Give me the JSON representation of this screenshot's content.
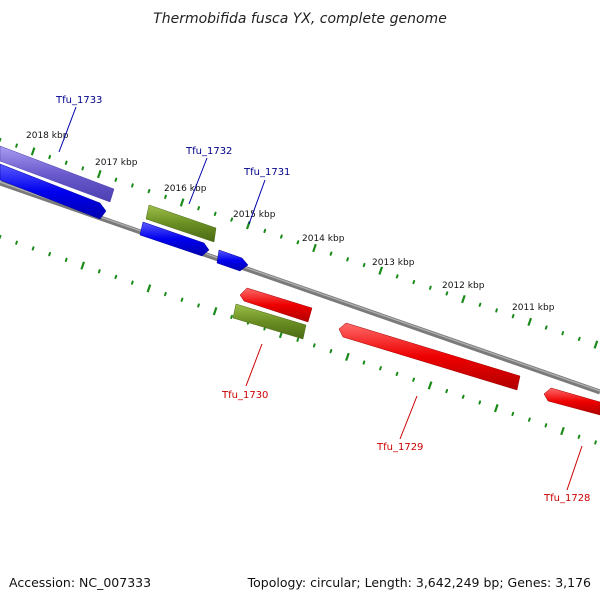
{
  "title": "Thermobifida fusca YX, complete genome",
  "footer": {
    "accession": "Accession: NC_007333",
    "stats": "Topology: circular; Length: 3,642,249 bp; Genes: 3,176"
  },
  "kbp_labels": [
    "2018 kbp",
    "2017 kbp",
    "2016 kbp",
    "2015 kbp",
    "2014 kbp",
    "2013 kbp",
    "2012 kbp",
    "2011 kbp"
  ],
  "gene_labels": {
    "forward": [
      "Tfu_1733",
      "Tfu_1732",
      "Tfu_1731"
    ],
    "reverse": [
      "Tfu_1730",
      "Tfu_1729",
      "Tfu_1728"
    ]
  },
  "colors": {
    "forward_strand": "#0000ee",
    "reverse_strand": "#ee0000",
    "rna_olive": "#6b8e23",
    "operon_purple": "#6a5acd",
    "backbone": "#808080",
    "ticks": "#1a8a1a",
    "forward_label": "#00008b",
    "reverse_label": "#cc0000"
  }
}
